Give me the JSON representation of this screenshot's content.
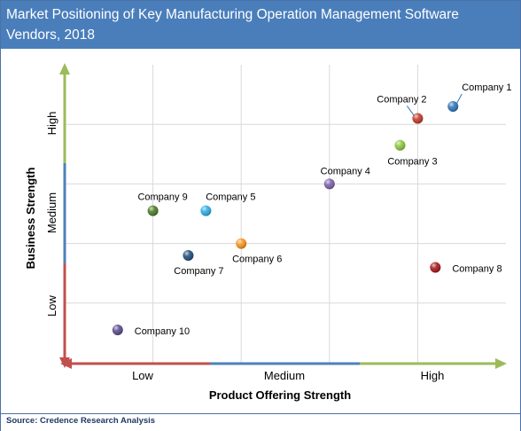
{
  "title": "Market Positioning of Key Manufacturing Operation Management Software Vendors, 2018",
  "source": "Source: Credence Research Analysis",
  "chart_data": {
    "type": "scatter",
    "xlabel": "Product Offering Strength",
    "ylabel": "Business Strength",
    "x_tick_labels": [
      "Low",
      "Medium",
      "High"
    ],
    "y_tick_labels": [
      "Low",
      "Medium",
      "High"
    ],
    "xlim": [
      0,
      5
    ],
    "ylim": [
      0,
      5
    ],
    "grid": true,
    "points": [
      {
        "label": "Company 1",
        "x": 4.4,
        "y": 4.3,
        "color": "#2e75b6"
      },
      {
        "label": "Company 2",
        "x": 4.0,
        "y": 4.1,
        "color": "#c0392b"
      },
      {
        "label": "Company 3",
        "x": 3.8,
        "y": 3.65,
        "color": "#8cc63f"
      },
      {
        "label": "Company 4",
        "x": 3.0,
        "y": 3.0,
        "color": "#7b5fa8"
      },
      {
        "label": "Company 5",
        "x": 1.6,
        "y": 2.55,
        "color": "#29abe2"
      },
      {
        "label": "Company 6",
        "x": 2.0,
        "y": 2.0,
        "color": "#f7941d"
      },
      {
        "label": "Company 7",
        "x": 1.4,
        "y": 1.8,
        "color": "#1f4e79"
      },
      {
        "label": "Company 8",
        "x": 4.2,
        "y": 1.6,
        "color": "#a4161a"
      },
      {
        "label": "Company 9",
        "x": 1.0,
        "y": 2.55,
        "color": "#4a7a26"
      },
      {
        "label": "Company 10",
        "x": 0.6,
        "y": 0.55,
        "color": "#5a4a8a"
      }
    ]
  }
}
